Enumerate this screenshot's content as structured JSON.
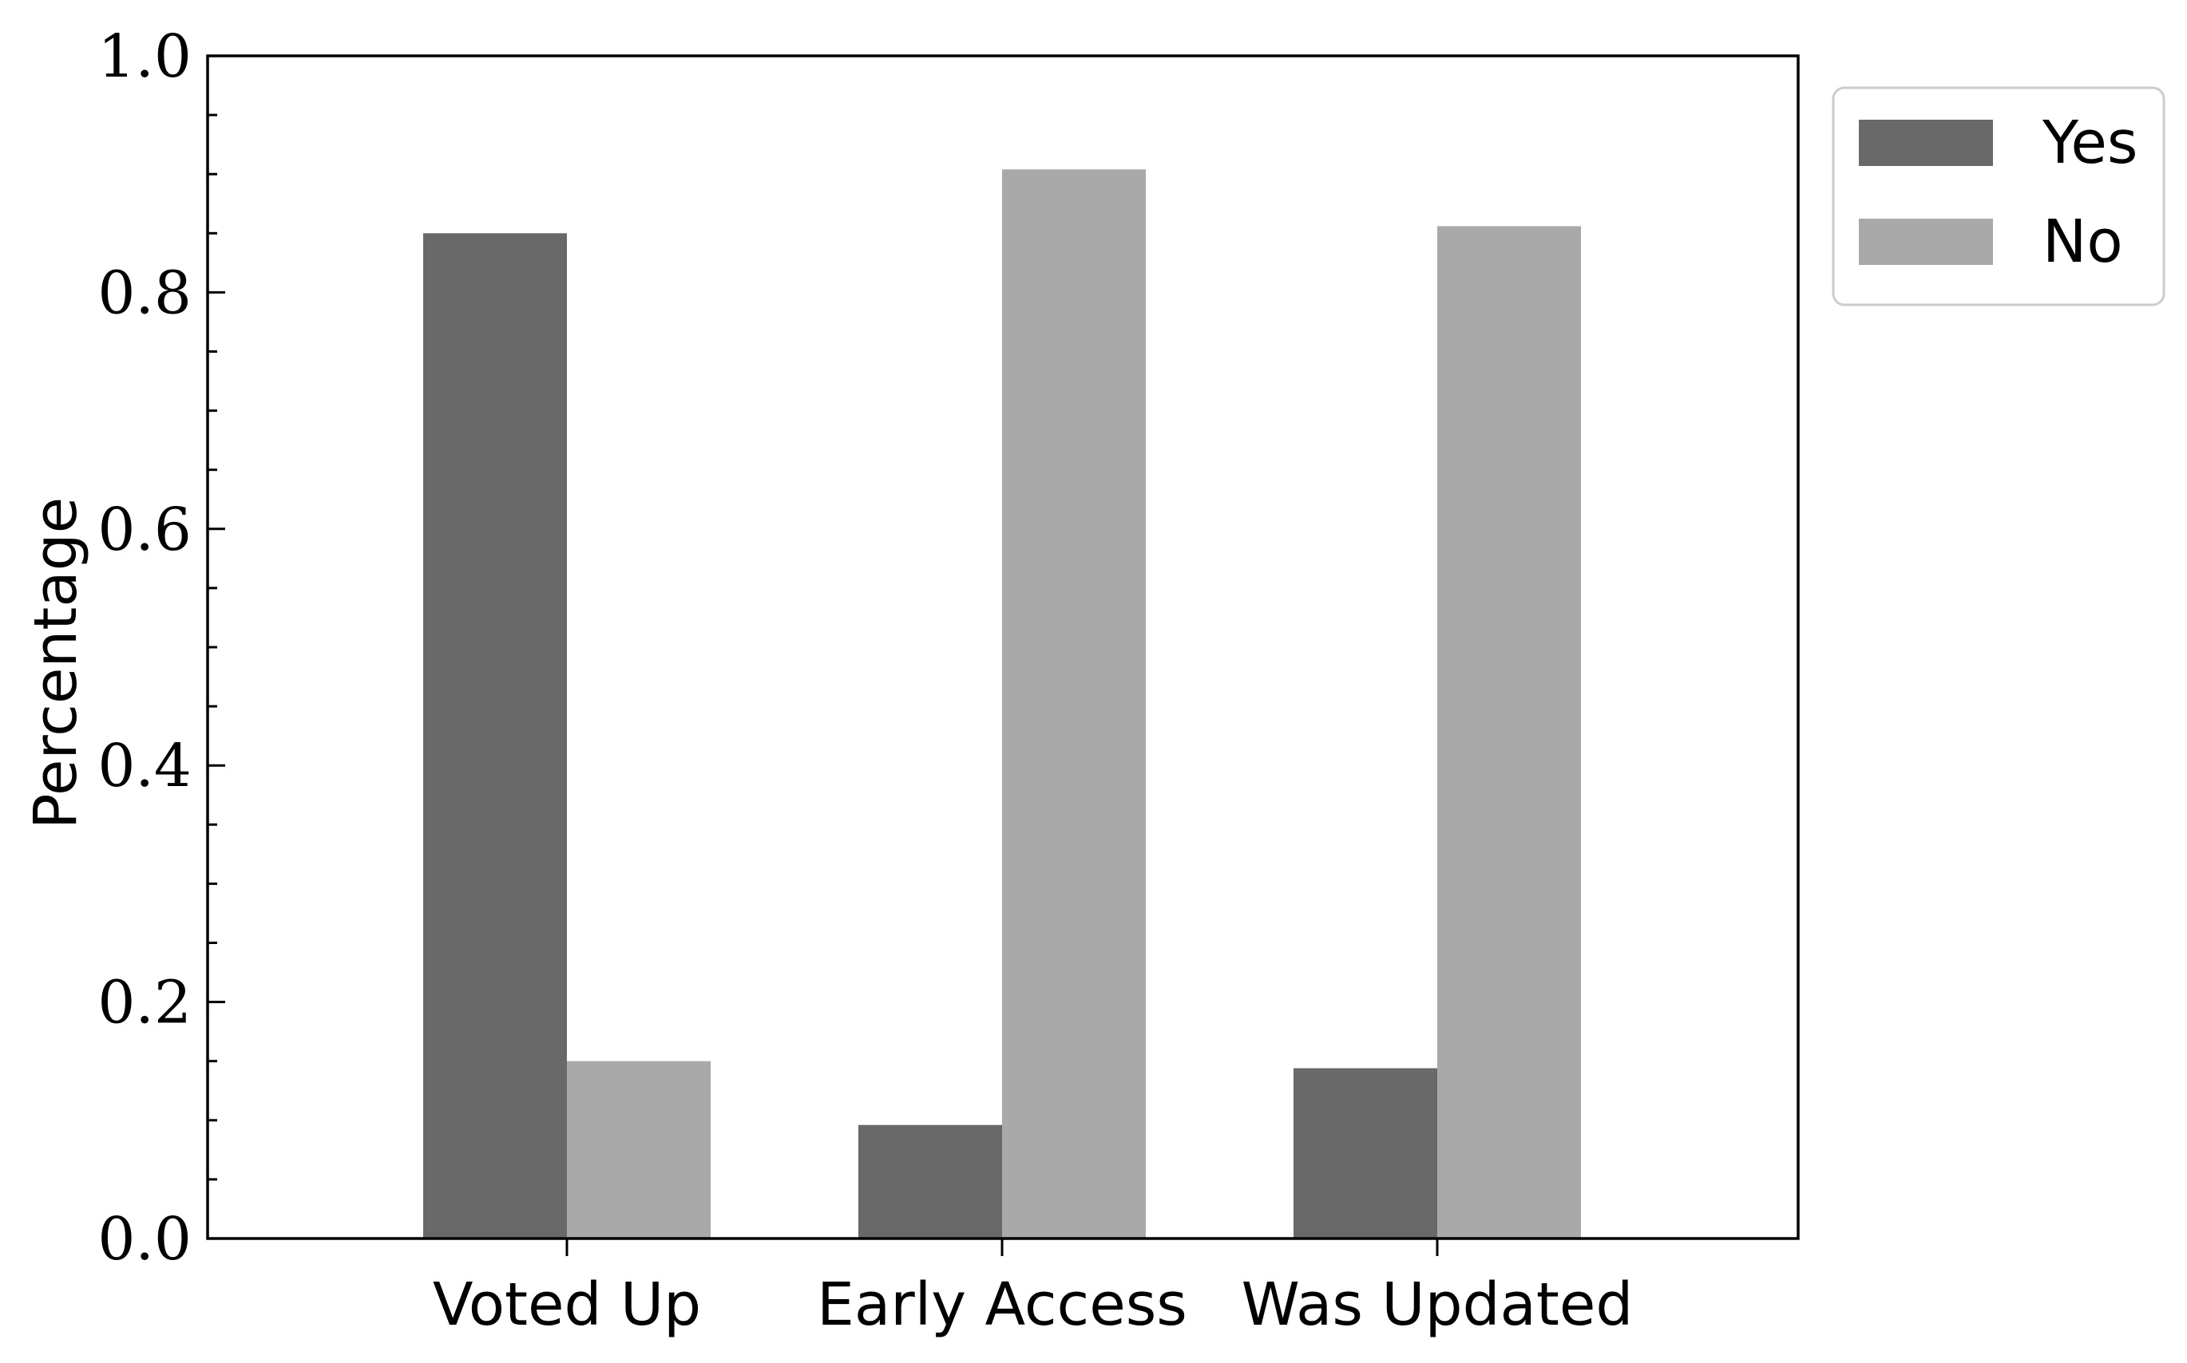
{
  "chart_data": {
    "type": "bar",
    "categories": [
      "Voted Up",
      "Early Access",
      "Was Updated"
    ],
    "series": [
      {
        "name": "Yes",
        "values": [
          0.85,
          0.096,
          0.144
        ],
        "color": "#696969"
      },
      {
        "name": "No",
        "values": [
          0.15,
          0.904,
          0.856
        ],
        "color": "#a9a9a9"
      }
    ],
    "title": "",
    "xlabel": "",
    "ylabel": "Percentage",
    "ylim": [
      0.0,
      1.0
    ],
    "yticks": [
      0.0,
      0.2,
      0.4,
      0.6,
      0.8,
      1.0
    ],
    "ytick_labels": [
      "0.0",
      "0.2",
      "0.4",
      "0.6",
      "0.8",
      "1.0"
    ],
    "grid": false,
    "legend_position": "upper-right-outside"
  }
}
